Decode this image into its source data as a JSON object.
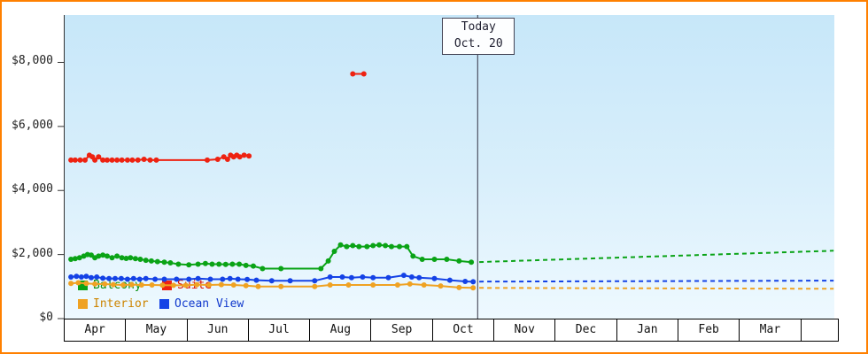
{
  "chart_data": {
    "type": "line",
    "x_axis": {
      "months": [
        "Apr",
        "May",
        "Jun",
        "Jul",
        "Aug",
        "Sep",
        "Oct",
        "Nov",
        "Dec",
        "Jan",
        "Feb",
        "Mar"
      ]
    },
    "y_axis": {
      "tick_labels": [
        "$0",
        "$2,000",
        "$4,000",
        "$6,000",
        "$8,000"
      ],
      "min": 0,
      "max": 9480,
      "tick_step": 2000
    },
    "today_marker": {
      "line1": "Today",
      "line2": "Oct. 20",
      "x_month": 6.653
    },
    "series": [
      {
        "name": "Interior",
        "color": "#efa223",
        "label_color": "#cc8400",
        "segments": [
          [
            [
              0.03,
              1100
            ],
            [
              0.15,
              1120
            ],
            [
              0.28,
              1100
            ],
            [
              0.42,
              1080
            ],
            [
              0.58,
              1080
            ],
            [
              0.72,
              1060
            ],
            [
              0.88,
              1050
            ],
            [
              1.02,
              1060
            ],
            [
              1.18,
              1050
            ],
            [
              1.35,
              1050
            ],
            [
              1.52,
              1045
            ],
            [
              1.7,
              1040
            ],
            [
              1.9,
              1040
            ],
            [
              2.08,
              1060
            ],
            [
              2.28,
              1050
            ],
            [
              2.48,
              1060
            ],
            [
              2.68,
              1050
            ],
            [
              2.88,
              1030
            ],
            [
              3.08,
              1000
            ],
            [
              3.45,
              1000
            ],
            [
              4.0,
              1000
            ],
            [
              4.25,
              1050
            ],
            [
              4.55,
              1050
            ],
            [
              4.95,
              1050
            ],
            [
              5.35,
              1050
            ],
            [
              5.55,
              1080
            ],
            [
              5.78,
              1050
            ],
            [
              6.05,
              1020
            ],
            [
              6.35,
              970
            ],
            [
              6.58,
              960
            ]
          ]
        ],
        "forecast": [
          [
            6.68,
            958
          ],
          [
            12.45,
            930
          ]
        ]
      },
      {
        "name": "Ocean View",
        "color": "#1442e6",
        "label_color": "#1038cc",
        "segments": [
          [
            [
              0.03,
              1300
            ],
            [
              0.12,
              1320
            ],
            [
              0.2,
              1300
            ],
            [
              0.28,
              1320
            ],
            [
              0.36,
              1280
            ],
            [
              0.45,
              1300
            ],
            [
              0.55,
              1260
            ],
            [
              0.65,
              1250
            ],
            [
              0.75,
              1250
            ],
            [
              0.85,
              1250
            ],
            [
              0.95,
              1230
            ],
            [
              1.05,
              1250
            ],
            [
              1.15,
              1230
            ],
            [
              1.25,
              1250
            ],
            [
              1.4,
              1230
            ],
            [
              1.55,
              1230
            ],
            [
              1.75,
              1230
            ],
            [
              1.95,
              1230
            ],
            [
              2.1,
              1250
            ],
            [
              2.3,
              1230
            ],
            [
              2.5,
              1230
            ],
            [
              2.62,
              1250
            ],
            [
              2.75,
              1230
            ],
            [
              2.9,
              1220
            ],
            [
              3.05,
              1200
            ],
            [
              3.3,
              1180
            ],
            [
              3.6,
              1180
            ],
            [
              4.0,
              1180
            ],
            [
              4.25,
              1300
            ],
            [
              4.45,
              1300
            ],
            [
              4.6,
              1280
            ],
            [
              4.78,
              1300
            ],
            [
              4.95,
              1280
            ],
            [
              5.2,
              1280
            ],
            [
              5.45,
              1350
            ],
            [
              5.58,
              1300
            ],
            [
              5.7,
              1280
            ],
            [
              5.95,
              1250
            ],
            [
              6.2,
              1200
            ],
            [
              6.45,
              1160
            ],
            [
              6.58,
              1150
            ]
          ]
        ],
        "forecast": [
          [
            6.68,
            1155
          ],
          [
            12.45,
            1185
          ]
        ]
      },
      {
        "name": "Balcony",
        "color": "#0aa316",
        "label_color": "#089010",
        "segments": [
          [
            [
              0.03,
              1850
            ],
            [
              0.1,
              1870
            ],
            [
              0.17,
              1900
            ],
            [
              0.24,
              1950
            ],
            [
              0.3,
              2000
            ],
            [
              0.36,
              1980
            ],
            [
              0.42,
              1900
            ],
            [
              0.48,
              1950
            ],
            [
              0.55,
              1980
            ],
            [
              0.62,
              1950
            ],
            [
              0.7,
              1900
            ],
            [
              0.78,
              1950
            ],
            [
              0.86,
              1900
            ],
            [
              0.93,
              1880
            ],
            [
              1.0,
              1900
            ],
            [
              1.08,
              1870
            ],
            [
              1.16,
              1850
            ],
            [
              1.25,
              1820
            ],
            [
              1.34,
              1800
            ],
            [
              1.44,
              1780
            ],
            [
              1.55,
              1760
            ],
            [
              1.65,
              1740
            ],
            [
              1.78,
              1700
            ],
            [
              1.95,
              1680
            ],
            [
              2.1,
              1700
            ],
            [
              2.22,
              1720
            ],
            [
              2.33,
              1700
            ],
            [
              2.44,
              1700
            ],
            [
              2.55,
              1690
            ],
            [
              2.66,
              1700
            ],
            [
              2.77,
              1700
            ],
            [
              2.88,
              1660
            ],
            [
              3.0,
              1640
            ],
            [
              3.15,
              1560
            ],
            [
              3.45,
              1560
            ],
            [
              4.1,
              1560
            ],
            [
              4.22,
              1800
            ],
            [
              4.32,
              2100
            ],
            [
              4.42,
              2300
            ],
            [
              4.52,
              2250
            ],
            [
              4.62,
              2280
            ],
            [
              4.72,
              2250
            ],
            [
              4.85,
              2250
            ],
            [
              4.95,
              2280
            ],
            [
              5.05,
              2300
            ],
            [
              5.15,
              2280
            ],
            [
              5.25,
              2250
            ],
            [
              5.38,
              2250
            ],
            [
              5.5,
              2250
            ],
            [
              5.6,
              1950
            ],
            [
              5.75,
              1850
            ],
            [
              5.95,
              1850
            ],
            [
              6.15,
              1850
            ],
            [
              6.35,
              1800
            ],
            [
              6.55,
              1760
            ]
          ]
        ],
        "forecast": [
          [
            6.68,
            1765
          ],
          [
            12.45,
            2120
          ]
        ]
      },
      {
        "name": "Suite",
        "color": "#ee2211",
        "label_color": "#dd1100",
        "segments": [
          [
            [
              0.03,
              4950
            ],
            [
              0.1,
              4950
            ],
            [
              0.18,
              4950
            ],
            [
              0.26,
              4950
            ],
            [
              0.33,
              5100
            ],
            [
              0.38,
              5050
            ],
            [
              0.42,
              4950
            ],
            [
              0.48,
              5050
            ],
            [
              0.55,
              4950
            ],
            [
              0.62,
              4950
            ],
            [
              0.7,
              4950
            ],
            [
              0.78,
              4950
            ],
            [
              0.86,
              4950
            ],
            [
              0.95,
              4950
            ],
            [
              1.03,
              4950
            ],
            [
              1.12,
              4950
            ],
            [
              1.22,
              4975
            ],
            [
              1.32,
              4950
            ],
            [
              1.42,
              4950
            ],
            [
              2.25,
              4950
            ],
            [
              2.42,
              4975
            ],
            [
              2.52,
              5050
            ],
            [
              2.58,
              4975
            ],
            [
              2.63,
              5100
            ],
            [
              2.68,
              5050
            ],
            [
              2.73,
              5100
            ],
            [
              2.78,
              5050
            ],
            [
              2.85,
              5100
            ],
            [
              2.93,
              5080
            ]
          ],
          [
            [
              4.62,
              7640
            ],
            [
              4.8,
              7640
            ]
          ]
        ],
        "forecast": []
      }
    ]
  }
}
